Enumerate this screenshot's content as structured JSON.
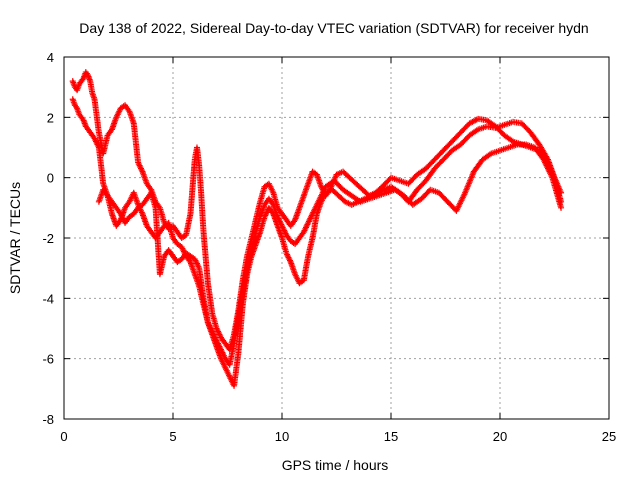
{
  "chart_data": {
    "type": "scatter",
    "title": "Day 138 of 2022, Sidereal Day-to-day VTEC variation (SDTVAR) for receiver hydn",
    "xlabel": "GPS time / hours",
    "ylabel": "SDTVAR / TECUs",
    "xlim": [
      0,
      25
    ],
    "ylim": [
      -8,
      4
    ],
    "xticks": [
      0,
      5,
      10,
      15,
      20,
      25
    ],
    "yticks": [
      -8,
      -6,
      -4,
      -2,
      0,
      2,
      4
    ],
    "xtick_labels": [
      "0",
      "5",
      "10",
      "15",
      "20",
      "25"
    ],
    "ytick_labels": [
      "-8",
      "-6",
      "-4",
      "-2",
      "0",
      "2",
      "4"
    ],
    "grid": true,
    "marker": "+",
    "color": "#ff0000",
    "series": [
      {
        "x": [
          0.4,
          0.5,
          0.6,
          0.7,
          0.8,
          0.9,
          1.0,
          1.1,
          1.2,
          1.3,
          1.4,
          1.6,
          1.8,
          2.0,
          2.2,
          2.4,
          2.6,
          2.8,
          3.0,
          3.2,
          3.4,
          3.6,
          3.8,
          4.0,
          4.2,
          4.4,
          4.6,
          4.8,
          5.0,
          5.2,
          5.4,
          5.6,
          5.8,
          6.0,
          6.1,
          6.2,
          6.3,
          6.4,
          6.6,
          6.8,
          7.0,
          7.2,
          7.4,
          7.6,
          7.8,
          8.0,
          8.2,
          8.4,
          8.6,
          8.8,
          9.0,
          9.2,
          9.4,
          9.6,
          9.8,
          10.0,
          10.2,
          10.4,
          10.6,
          10.8,
          11.0,
          11.2,
          11.4,
          11.6,
          11.8,
          12.0,
          12.2,
          12.5,
          12.8,
          13.1,
          13.4,
          13.7,
          14.0,
          14.3,
          14.6,
          15.0,
          15.4,
          15.8,
          16.2,
          16.6,
          17.0,
          17.4,
          17.8,
          18.2,
          18.6,
          19.0,
          19.4,
          19.8,
          20.2,
          20.6,
          21.0,
          21.4,
          21.8,
          22.2,
          22.5,
          22.8
        ],
        "y": [
          3.2,
          3.0,
          2.9,
          3.1,
          3.2,
          3.3,
          3.5,
          3.4,
          3.2,
          2.8,
          2.6,
          1.5,
          0.8,
          1.4,
          1.6,
          2.0,
          2.3,
          2.4,
          2.2,
          1.8,
          0.5,
          0.2,
          -0.2,
          -0.4,
          -0.8,
          -1.0,
          -1.5,
          -1.7,
          -1.6,
          -1.8,
          -2.0,
          -1.9,
          -1.2,
          0.6,
          1.0,
          0.4,
          -0.6,
          -1.8,
          -3.5,
          -4.5,
          -5.0,
          -5.3,
          -5.5,
          -5.7,
          -5.2,
          -4.4,
          -3.4,
          -2.6,
          -2.0,
          -1.4,
          -0.8,
          -0.3,
          -0.2,
          -0.5,
          -1.0,
          -1.2,
          -1.4,
          -1.6,
          -1.4,
          -1.0,
          -0.6,
          -0.2,
          0.2,
          0.1,
          -0.3,
          -0.6,
          -0.4,
          0.1,
          0.2,
          0.0,
          -0.2,
          -0.4,
          -0.6,
          -0.5,
          -0.3,
          0.0,
          -0.1,
          -0.2,
          0.1,
          0.3,
          0.6,
          0.9,
          1.2,
          1.5,
          1.8,
          1.95,
          1.9,
          1.7,
          1.4,
          1.2,
          1.1,
          1.0,
          0.9,
          0.5,
          0.0,
          -0.5
        ]
      },
      {
        "x": [
          0.4,
          0.5,
          0.6,
          0.7,
          0.8,
          0.9,
          1.0,
          1.2,
          1.4,
          1.6,
          1.8,
          2.0,
          2.2,
          2.4,
          2.6,
          2.8,
          3.0,
          3.2,
          3.4,
          3.6,
          3.8,
          4.0,
          4.2,
          4.4,
          4.6,
          4.8,
          5.0,
          5.2,
          5.4,
          5.6,
          5.8,
          6.0,
          6.2,
          6.4,
          6.6,
          6.8,
          7.0,
          7.2,
          7.4,
          7.6,
          7.8,
          8.0,
          8.2,
          8.4,
          8.6,
          8.8,
          9.0,
          9.2,
          9.4,
          9.6,
          9.8,
          10.0,
          10.2,
          10.4,
          10.6,
          10.8,
          11.0,
          11.2,
          11.4,
          11.6,
          11.8,
          12.0,
          12.3,
          12.6,
          12.9,
          13.2,
          13.5,
          13.8,
          14.1,
          14.4,
          14.7,
          15.0,
          15.4,
          15.8,
          16.2,
          16.6,
          17.0,
          17.4,
          17.8,
          18.2,
          18.6,
          19.0,
          19.4,
          19.8,
          20.2,
          20.6,
          21.0,
          21.4,
          21.8,
          22.2,
          22.5,
          22.8
        ],
        "y": [
          2.6,
          2.4,
          2.3,
          2.1,
          2.0,
          1.9,
          1.7,
          1.5,
          1.3,
          1.0,
          -0.2,
          -0.6,
          -0.8,
          -1.0,
          -1.2,
          -1.5,
          -1.3,
          -1.2,
          -1.0,
          -0.9,
          -0.7,
          -0.5,
          -1.0,
          -3.2,
          -2.6,
          -2.4,
          -2.6,
          -2.8,
          -2.7,
          -2.5,
          -2.6,
          -2.7,
          -3.0,
          -4.0,
          -4.8,
          -5.2,
          -5.6,
          -6.0,
          -6.3,
          -6.6,
          -6.9,
          -5.8,
          -4.2,
          -3.2,
          -2.6,
          -2.2,
          -1.8,
          -1.3,
          -1.0,
          -1.2,
          -1.6,
          -2.0,
          -2.5,
          -2.8,
          -3.2,
          -3.5,
          -3.4,
          -2.6,
          -2.0,
          -1.2,
          -0.8,
          -0.5,
          -0.4,
          -0.6,
          -0.8,
          -0.9,
          -0.8,
          -0.7,
          -0.6,
          -0.5,
          -0.4,
          -0.3,
          -0.5,
          -0.8,
          -0.4,
          -0.1,
          0.3,
          0.6,
          0.9,
          1.1,
          1.4,
          1.6,
          1.7,
          1.65,
          1.75,
          1.85,
          1.8,
          1.5,
          1.1,
          0.6,
          0.0,
          -0.8
        ]
      },
      {
        "x": [
          1.6,
          1.8,
          2.0,
          2.2,
          2.4,
          2.6,
          2.8,
          3.0,
          3.2,
          3.4,
          3.6,
          3.8,
          4.0,
          4.2,
          4.4,
          4.6,
          4.8,
          5.0,
          5.2,
          5.4,
          5.6,
          5.8,
          6.0,
          6.2,
          6.4,
          6.6,
          6.8,
          7.0,
          7.2,
          7.4,
          7.6,
          7.8,
          8.0,
          8.2,
          8.4,
          8.6,
          8.8,
          9.0,
          9.2,
          9.4,
          9.6,
          9.8,
          10.0,
          10.2,
          10.4,
          10.6,
          10.8,
          11.0,
          11.2,
          11.4,
          11.6,
          11.8,
          12.0,
          12.4,
          12.8,
          13.2,
          13.6,
          14.0,
          14.4,
          14.8,
          15.2,
          15.6,
          16.0,
          16.4,
          16.8,
          17.2,
          17.6,
          18.0,
          18.4,
          18.8,
          19.2,
          19.6,
          20.0,
          20.4,
          20.8,
          21.2,
          21.6,
          22.0,
          22.4,
          22.8
        ],
        "y": [
          -0.8,
          -0.4,
          -0.6,
          -1.2,
          -1.6,
          -1.4,
          -1.0,
          -0.8,
          -0.5,
          -0.9,
          -1.2,
          -1.6,
          -1.8,
          -2.0,
          -1.8,
          -1.6,
          -1.5,
          -2.0,
          -2.2,
          -2.3,
          -2.6,
          -2.8,
          -3.2,
          -3.6,
          -4.2,
          -4.8,
          -5.1,
          -5.4,
          -5.7,
          -6.0,
          -6.2,
          -5.5,
          -4.6,
          -3.8,
          -3.0,
          -2.4,
          -1.8,
          -1.3,
          -0.9,
          -0.7,
          -0.9,
          -1.3,
          -1.6,
          -1.9,
          -2.1,
          -2.2,
          -2.0,
          -1.8,
          -1.5,
          -1.2,
          -0.9,
          -0.6,
          -0.3,
          -0.1,
          -0.4,
          -0.6,
          -0.8,
          -0.7,
          -0.6,
          -0.5,
          -0.4,
          -0.6,
          -0.9,
          -0.7,
          -0.4,
          -0.5,
          -0.8,
          -1.1,
          -0.5,
          0.2,
          0.6,
          0.8,
          0.9,
          1.0,
          1.1,
          1.1,
          1.0,
          0.6,
          0.0,
          -1.0
        ]
      }
    ]
  }
}
